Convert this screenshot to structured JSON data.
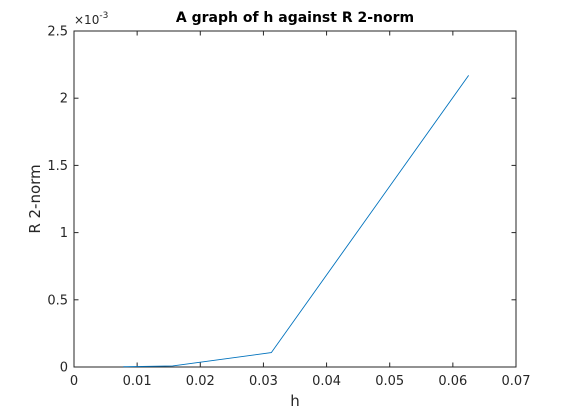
{
  "chart_data": {
    "type": "line",
    "title": "A graph of h against R 2-norm",
    "xlabel": "h",
    "ylabel": "R 2-norm",
    "xlim": [
      0,
      0.07
    ],
    "ylim": [
      0,
      0.0025
    ],
    "x_ticks": [
      0,
      0.01,
      0.02,
      0.03,
      0.04,
      0.05,
      0.06,
      0.07
    ],
    "x_tick_labels": [
      "0",
      "0.01",
      "0.02",
      "0.03",
      "0.04",
      "0.05",
      "0.06",
      "0.07"
    ],
    "y_ticks": [
      0,
      0.0005,
      0.001,
      0.0015,
      0.002,
      0.0025
    ],
    "y_tick_labels": [
      "0",
      "0.5",
      "1",
      "1.5",
      "2",
      "2.5"
    ],
    "y_exponent": {
      "base": "×10",
      "power": "-3"
    },
    "grid": false,
    "series": [
      {
        "x": [
          0.0078125,
          0.015625,
          0.03125,
          0.0625
        ],
        "y": [
          2e-06,
          8e-06,
          0.000107,
          0.00217
        ],
        "color": "#0072BD"
      }
    ]
  }
}
